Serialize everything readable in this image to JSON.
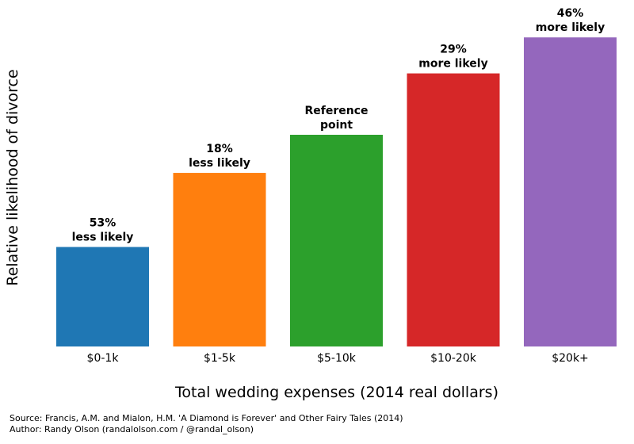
{
  "chart_data": {
    "type": "bar",
    "title": "",
    "xlabel": "Total wedding expenses (2014 real dollars)",
    "ylabel": "Relative likelihood of divorce",
    "categories": [
      "$0-1k",
      "$1-5k",
      "$5-10k",
      "$10-20k",
      "$20k+"
    ],
    "values": [
      0.47,
      0.82,
      1.0,
      1.29,
      1.46
    ],
    "annotations": [
      [
        "53%",
        "less likely"
      ],
      [
        "18%",
        "less likely"
      ],
      [
        "Reference",
        "point"
      ],
      [
        "29%",
        "more likely"
      ],
      [
        "46%",
        "more likely"
      ]
    ],
    "colors": [
      "#1f77b4",
      "#ff7f0e",
      "#2ca02c",
      "#d62728",
      "#9467bd"
    ],
    "ylim": [
      0,
      1.5
    ],
    "grid": false,
    "y_ticks_shown": false
  },
  "footer": {
    "source": "Source: Francis, A.M. and Mialon, H.M. 'A Diamond is Forever' and Other Fairy Tales (2014)",
    "author": "Author: Randy Olson (randalolson.com / @randal_olson)"
  }
}
